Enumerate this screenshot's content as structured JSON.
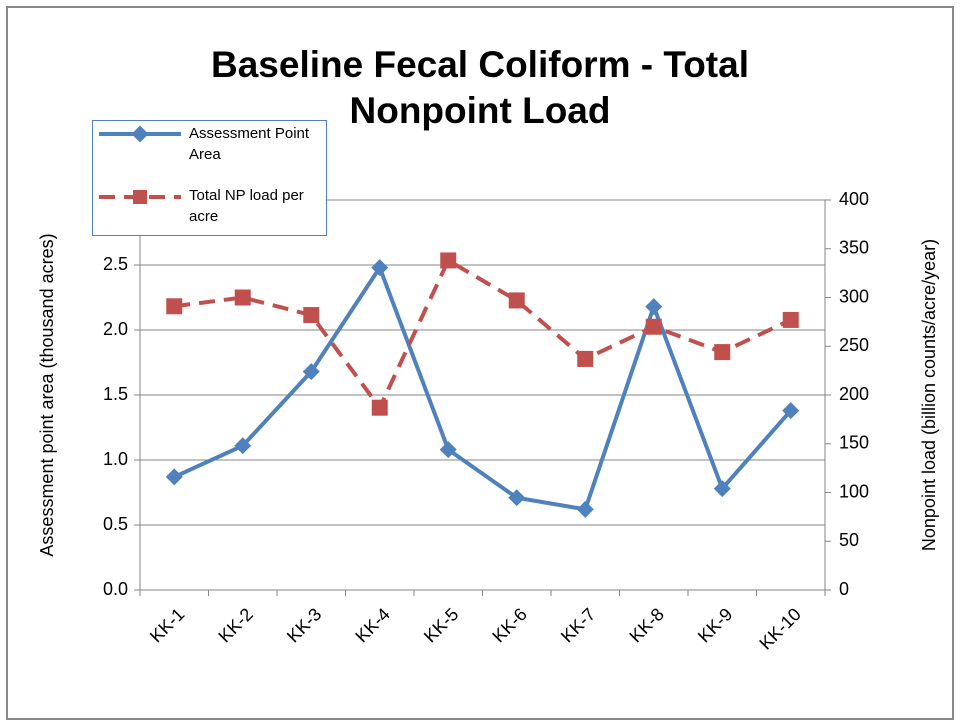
{
  "chart_data": {
    "type": "line",
    "title": "Baseline Fecal Coliform - Total Nonpoint Load",
    "ylabel": "Assessment point area (thousand acres)",
    "y2label": "Nonpoint load (billion counts/acre/year)",
    "categories": [
      "KK-1",
      "KK-2",
      "KK-3",
      "KK-4",
      "KK-5",
      "KK-6",
      "KK-7",
      "KK-8",
      "KK-9",
      "KK-10"
    ],
    "series": [
      {
        "name": "Assessment Point Area",
        "color": "#4f81bd",
        "marker": "diamond",
        "dashed": false,
        "values": [
          0.87,
          1.11,
          1.68,
          2.48,
          1.08,
          0.71,
          0.62,
          2.18,
          0.78,
          1.38
        ]
      },
      {
        "name": "Total NP load per acre",
        "color": "#c0504d",
        "marker": "square",
        "dashed": true,
        "axis": "y2",
        "values": [
          291,
          300,
          282,
          187,
          338,
          297,
          237,
          270,
          244,
          277
        ]
      }
    ],
    "ylim": [
      0,
      3
    ],
    "yticks": [
      {
        "value": 0,
        "label": "0.0"
      },
      0.5,
      {
        "value": 1,
        "label": "1.0"
      },
      1.5,
      {
        "value": 2,
        "label": "2.0"
      },
      2.5,
      {
        "value": 3,
        "label": "3"
      }
    ],
    "y2lim": [
      0,
      400
    ],
    "y2ticks": [
      0,
      50,
      100,
      150,
      200,
      250,
      300,
      350,
      400
    ],
    "grid": true,
    "legend": "upper left"
  }
}
